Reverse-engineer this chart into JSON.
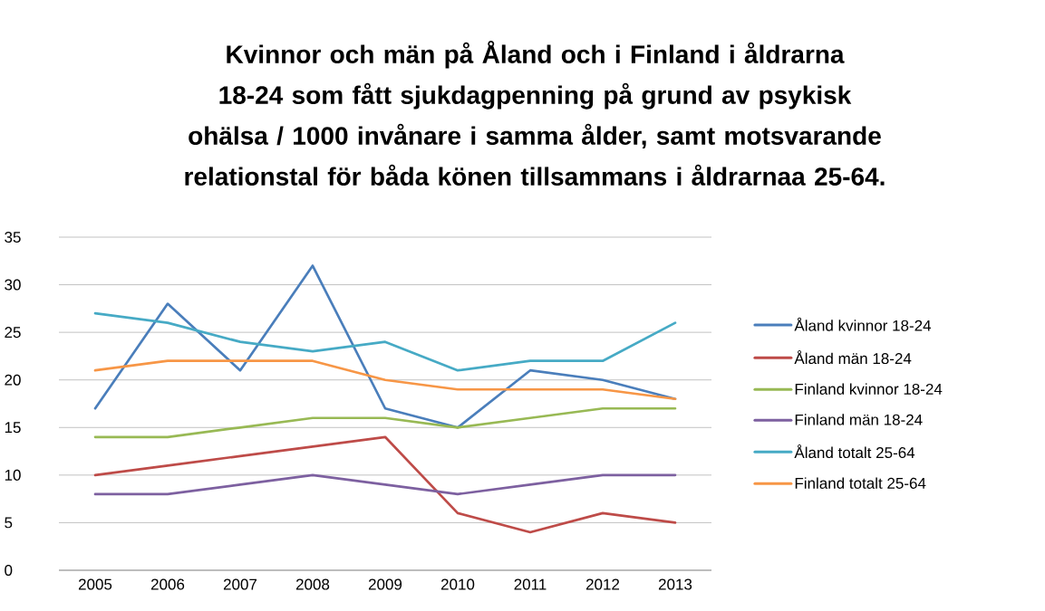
{
  "chart_data": {
    "type": "line",
    "title": "Kvinnor och män på Åland och i Finland i åldrarna 18-24 som fått sjukdagpenning på grund av psykisk ohälsa / 1000 invånare i samma ålder, samt motsvarande relationstal för båda könen tillsammans i åldrarnaa 25-64.",
    "categories": [
      "2005",
      "2006",
      "2007",
      "2008",
      "2009",
      "2010",
      "2011",
      "2012",
      "2013"
    ],
    "series": [
      {
        "name": "Åland kvinnor 18-24",
        "color": "#4a7ebb",
        "values": [
          17,
          28,
          21,
          32,
          17,
          15,
          21,
          20,
          18
        ]
      },
      {
        "name": "Åland män 18-24",
        "color": "#be4b48",
        "values": [
          10,
          11,
          12,
          13,
          14,
          6,
          4,
          6,
          5
        ]
      },
      {
        "name": "Finland kvinnor 18-24",
        "color": "#98b954",
        "values": [
          14,
          14,
          15,
          16,
          16,
          15,
          16,
          17,
          17
        ]
      },
      {
        "name": "Finland män 18-24",
        "color": "#7d60a0",
        "values": [
          8,
          8,
          9,
          10,
          9,
          8,
          9,
          10,
          10
        ]
      },
      {
        "name": "Åland totalt 25-64",
        "color": "#46aac5",
        "values": [
          27,
          26,
          24,
          23,
          24,
          21,
          22,
          22,
          26
        ]
      },
      {
        "name": "Finland totalt 25-64",
        "color": "#f79646",
        "values": [
          21,
          22,
          22,
          22,
          20,
          19,
          19,
          19,
          18
        ]
      }
    ],
    "ylim": [
      0,
      35
    ],
    "yticks": [
      0,
      5,
      10,
      15,
      20,
      25,
      30,
      35
    ],
    "grid": "y",
    "legend": "right",
    "marker": "none",
    "line_style": "solid"
  }
}
